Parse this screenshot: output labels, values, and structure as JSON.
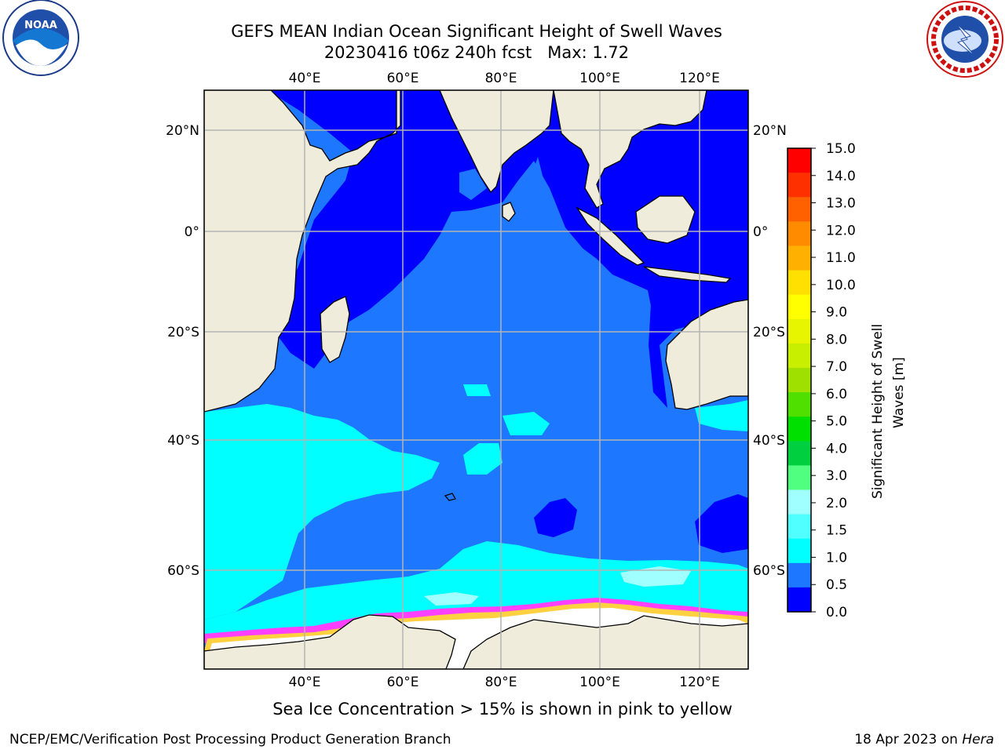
{
  "header": {
    "title": "GEFS MEAN Indian Ocean Significant Height of Swell Waves",
    "subtitle": "20230416 t06z 240h fcst   Max: 1.72"
  },
  "logos": {
    "left": "noaa-logo",
    "right": "nws-logo"
  },
  "map": {
    "region": "Indian Ocean",
    "lon_range": [
      20,
      130
    ],
    "lat_range": [
      -75,
      28
    ],
    "lon_ticks": [
      "40°E",
      "60°E",
      "80°E",
      "100°E",
      "120°E"
    ],
    "lat_ticks": [
      "20°N",
      "0°",
      "20°S",
      "40°S",
      "60°S"
    ],
    "colors": {
      "land": "#efecdc",
      "deep_blue": "#0000ff",
      "medium_blue": "#1e78ff",
      "cyan": "#00ffff",
      "light_cyan": "#a0ffff",
      "ice_white": "#ffffff",
      "ice_pink": "#ff40ff",
      "ice_yellow": "#ffd040"
    }
  },
  "colorbar": {
    "label": "Significant Height of Swell Waves [m]",
    "ticks": [
      "15.0",
      "14.0",
      "13.0",
      "12.0",
      "11.0",
      "10.0",
      "9.0",
      "8.0",
      "7.0",
      "6.0",
      "5.0",
      "4.0",
      "3.0",
      "2.0",
      "1.5",
      "1.0",
      "0.5",
      "0.0"
    ],
    "colors": [
      "#ff0000",
      "#ff3000",
      "#ff6000",
      "#ff8c00",
      "#ffb000",
      "#ffe000",
      "#ffff00",
      "#e8f500",
      "#c8ee00",
      "#a0e000",
      "#50e000",
      "#00e000",
      "#00d040",
      "#50ff80",
      "#a0ffff",
      "#50ffff",
      "#00ffff",
      "#1e78ff",
      "#0000ff"
    ]
  },
  "footer": {
    "note": "Sea Ice Concentration > 15% is shown in pink to yellow",
    "credit": "NCEP/EMC/Verification Post Processing Product Generation Branch",
    "date": "18 Apr 2023 on ",
    "host": "Hera"
  }
}
